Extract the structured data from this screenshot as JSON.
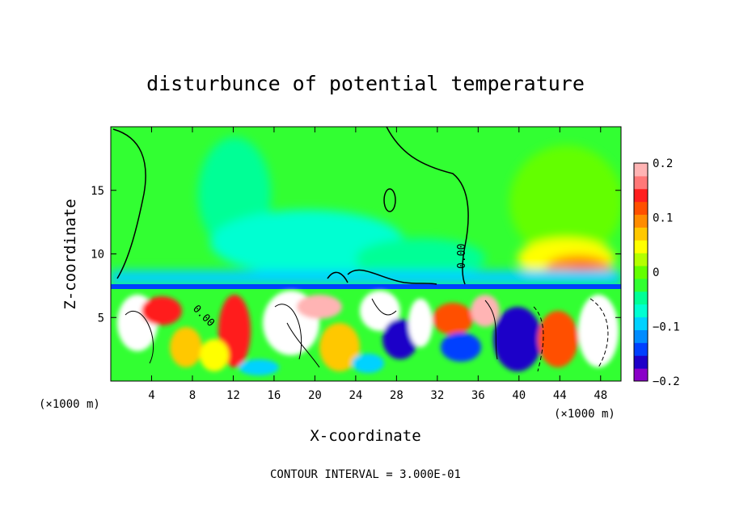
{
  "chart_data": {
    "type": "heatmap",
    "title": "disturbunce of potential temperature",
    "xlabel": "X-coordinate",
    "ylabel": "Z-coordinate",
    "x_unit_left": "(×1000 m)",
    "x_unit_right": "(×1000 m)",
    "xlim": [
      0,
      50
    ],
    "ylim": [
      0,
      20
    ],
    "xticks": [
      "4",
      "8",
      "12",
      "16",
      "20",
      "24",
      "28",
      "32",
      "36",
      "40",
      "44",
      "48"
    ],
    "xtick_values": [
      4,
      8,
      12,
      16,
      20,
      24,
      28,
      32,
      36,
      40,
      44,
      48
    ],
    "yticks": [
      "5",
      "10",
      "15"
    ],
    "ytick_values": [
      5,
      10,
      15
    ],
    "colorbar": {
      "range": [
        -0.2,
        0.2
      ],
      "tick_labels": [
        "0.2",
        "0.1",
        "0",
        "−0.1",
        "−0.2"
      ],
      "tick_values": [
        0.2,
        0.1,
        0,
        -0.1,
        -0.2
      ],
      "colors": [
        "#8a00c8",
        "#1e00c8",
        "#0040ff",
        "#008cff",
        "#00d2ff",
        "#00ffd2",
        "#00ff96",
        "#32ff32",
        "#64ff00",
        "#b4ff00",
        "#ffff00",
        "#ffc800",
        "#ff8c00",
        "#ff5000",
        "#ff1e1e",
        "#ff7878",
        "#ffb4b4"
      ]
    },
    "contour_labels": [
      "0.00",
      "0.00"
    ],
    "footer": "CONTOUR INTERVAL = 3.000E-01"
  }
}
